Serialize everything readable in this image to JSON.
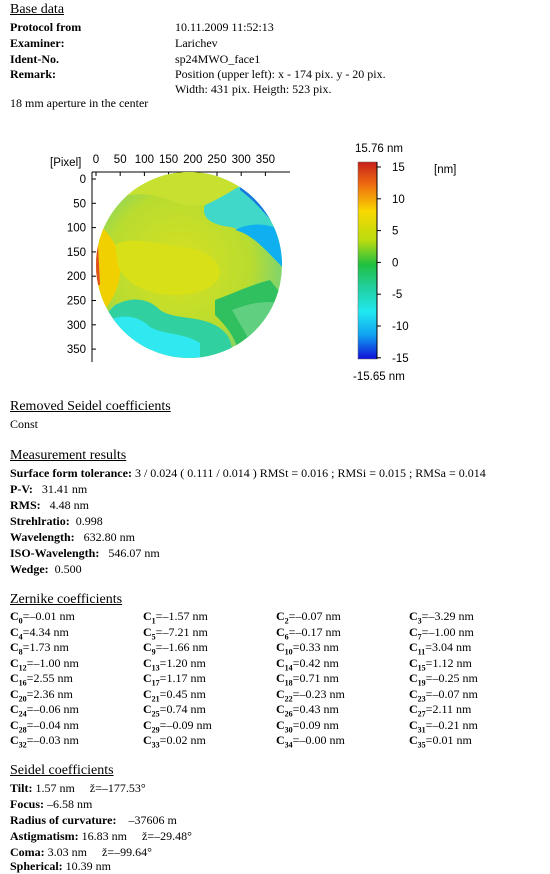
{
  "base": {
    "title": "Base data",
    "protocol_label": "Protocol from",
    "protocol_value": "10.11.2009     11:52:13",
    "examiner_label": "Examiner:",
    "examiner_value": "Larichev",
    "ident_label": "Ident-No.",
    "ident_value": "sp24MWO_face1",
    "remark_label": "Remark:",
    "remark_line1": "Position (upper left): x - 174 pix. y - 20 pix.",
    "remark_line2": "Width: 431 pix. Heigth: 523 pix.",
    "note": "18 mm aperture in the center"
  },
  "map": {
    "axis_unit": "[Pixel]",
    "x_ticks": [
      "0",
      "50",
      "100",
      "150",
      "200",
      "250",
      "300",
      "350"
    ],
    "y_ticks": [
      "0",
      "50",
      "100",
      "150",
      "200",
      "250",
      "300",
      "350"
    ],
    "colorbar_max": "15.76 nm",
    "colorbar_min": "-15.65 nm",
    "colorbar_unit": "[nm]",
    "colorbar_ticks": [
      "15",
      "10",
      "5",
      "0",
      "-5",
      "-10",
      "-15"
    ]
  },
  "removed": {
    "title": "Removed Seidel coefficients",
    "value": "Const"
  },
  "measurement": {
    "title": "Measurement results",
    "sft_label": "Surface form tolerance:",
    "sft_value": "3 / 0.024   ( 0.111 / 0.014 ) RMSt = 0.016 ; RMSi = 0.015 ; RMSa = 0.014",
    "pv_label": "P-V:",
    "pv_value": "31.41 nm",
    "rms_label": "RMS:",
    "rms_value": "4.48 nm",
    "strehl_label": "Strehlratio:",
    "strehl_value": "0.998",
    "wl_label": "Wavelength:",
    "wl_value": "632.80 nm",
    "iso_label": "ISO-Wavelength:",
    "iso_value": "546.07 nm",
    "wedge_label": "Wedge:",
    "wedge_value": "0.500"
  },
  "zernike": {
    "title": "Zernike coefficients",
    "coeffs": [
      {
        "i": "0",
        "v": "=–0.01 nm"
      },
      {
        "i": "1",
        "v": "=–1.57 nm"
      },
      {
        "i": "2",
        "v": "=–0.07 nm"
      },
      {
        "i": "3",
        "v": "=–3.29 nm"
      },
      {
        "i": "4",
        "v": "=4.34 nm"
      },
      {
        "i": "5",
        "v": "=–7.21 nm"
      },
      {
        "i": "6",
        "v": "=–0.17 nm"
      },
      {
        "i": "7",
        "v": "=–1.00 nm"
      },
      {
        "i": "8",
        "v": "=1.73 nm"
      },
      {
        "i": "9",
        "v": "=–1.66 nm"
      },
      {
        "i": "10",
        "v": "=0.33 nm"
      },
      {
        "i": "11",
        "v": "=3.04 nm"
      },
      {
        "i": "12",
        "v": "=–1.00 nm"
      },
      {
        "i": "13",
        "v": "=1.20 nm"
      },
      {
        "i": "14",
        "v": "=0.42 nm"
      },
      {
        "i": "15",
        "v": "=1.12 nm"
      },
      {
        "i": "16",
        "v": "=2.55 nm"
      },
      {
        "i": "17",
        "v": "=1.17 nm"
      },
      {
        "i": "18",
        "v": "=0.71 nm"
      },
      {
        "i": "19",
        "v": "=–0.25 nm"
      },
      {
        "i": "20",
        "v": "=2.36 nm"
      },
      {
        "i": "21",
        "v": "=0.45 nm"
      },
      {
        "i": "22",
        "v": "=–0.23 nm"
      },
      {
        "i": "23",
        "v": "=–0.07 nm"
      },
      {
        "i": "24",
        "v": "=–0.06 nm"
      },
      {
        "i": "25",
        "v": "=0.74 nm"
      },
      {
        "i": "26",
        "v": "=0.43 nm"
      },
      {
        "i": "27",
        "v": "=2.11 nm"
      },
      {
        "i": "28",
        "v": "=–0.04 nm"
      },
      {
        "i": "29",
        "v": "=–0.09 nm"
      },
      {
        "i": "30",
        "v": "=0.09 nm"
      },
      {
        "i": "31",
        "v": "=–0.21 nm"
      },
      {
        "i": "32",
        "v": "=–0.03 nm"
      },
      {
        "i": "33",
        "v": "=0.02 nm"
      },
      {
        "i": "34",
        "v": "=–0.00 nm"
      },
      {
        "i": "35",
        "v": "=0.01 nm"
      }
    ]
  },
  "seidel": {
    "title": "Seidel coefficients",
    "tilt_label": "Tilt:",
    "tilt_value": "1.57 nm     ž=–177.53°",
    "focus_label": "Focus:",
    "focus_value": "–6.58 nm",
    "roc_label": "Radius of curvature:",
    "roc_value": "–37606 m",
    "astig_label": "Astigmatism:",
    "astig_value": "16.83 nm     ž=–29.48°",
    "coma_label": "Coma:",
    "coma_value": "3.03 nm     ž=–99.64°",
    "sph_label": "Spherical:",
    "sph_value": "10.39 nm"
  }
}
